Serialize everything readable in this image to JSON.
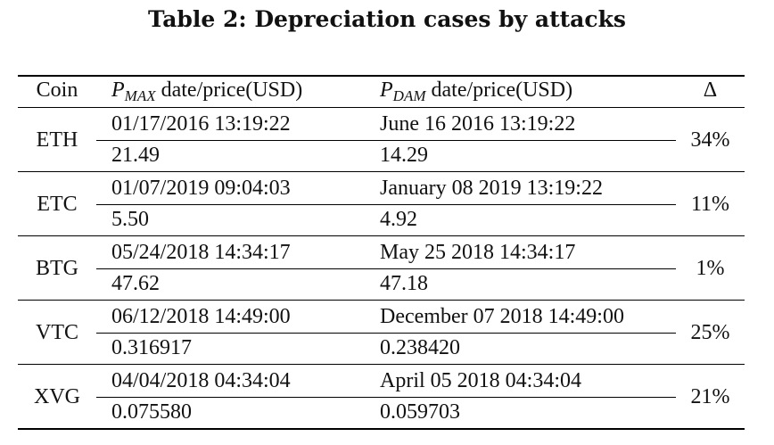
{
  "caption": "Table 2: Depreciation cases by attacks",
  "headers": {
    "coin": "Coin",
    "pmax_sym": "P",
    "pmax_sub": "MAX",
    "pmax_rest": " date/price(USD)",
    "pdam_sym": "P",
    "pdam_sub": "DAM",
    "pdam_rest": " date/price(USD)",
    "delta": "Δ"
  },
  "rows": [
    {
      "coin": "ETH",
      "pmax_date": "01/17/2016 13:19:22",
      "pmax_price": "21.49",
      "pdam_date": "June 16 2016 13:19:22",
      "pdam_price": "14.29",
      "delta": "34%"
    },
    {
      "coin": "ETC",
      "pmax_date": "01/07/2019 09:04:03",
      "pmax_price": "5.50",
      "pdam_date": "January 08 2019 13:19:22",
      "pdam_price": "4.92",
      "delta": "11%"
    },
    {
      "coin": "BTG",
      "pmax_date": "05/24/2018 14:34:17",
      "pmax_price": "47.62",
      "pdam_date": "May 25 2018 14:34:17",
      "pdam_price": "47.18",
      "delta": "1%"
    },
    {
      "coin": "VTC",
      "pmax_date": "06/12/2018 14:49:00",
      "pmax_price": "0.316917",
      "pdam_date": "December 07 2018 14:49:00",
      "pdam_price": "0.238420",
      "delta": "25%"
    },
    {
      "coin": "XVG",
      "pmax_date": "04/04/2018 04:34:04",
      "pmax_price": "0.075580",
      "pdam_date": "April 05 2018 04:34:04",
      "pdam_price": "0.059703",
      "delta": "21%"
    }
  ]
}
